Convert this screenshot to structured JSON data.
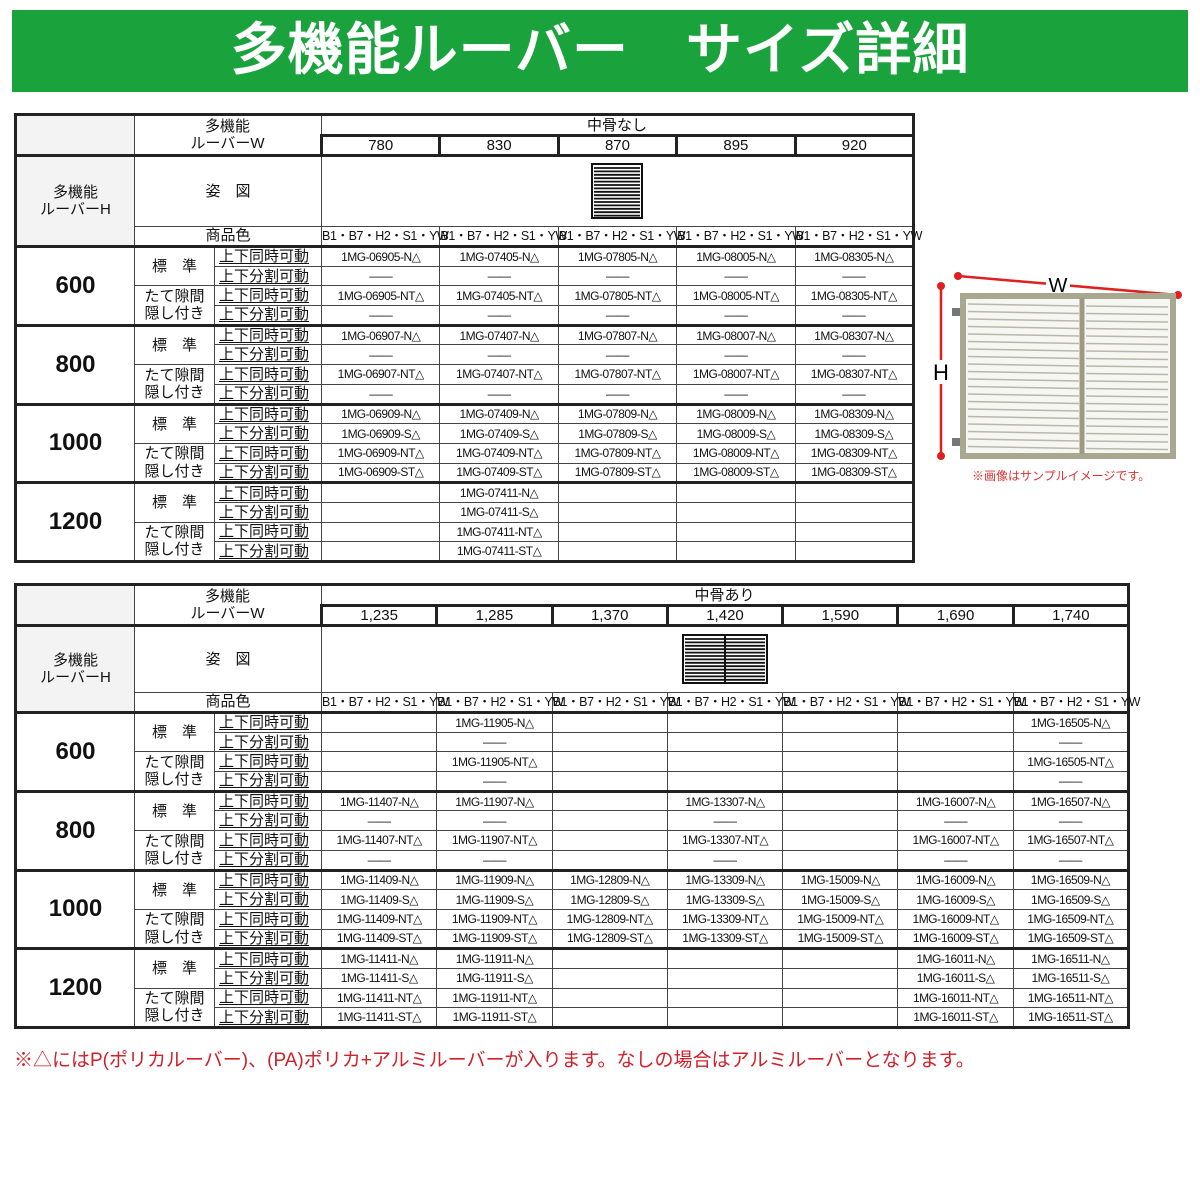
{
  "title": "多機能ルーバー　サイズ詳細",
  "labels": {
    "w_label_1": "多機能",
    "w_label_2": "ルーバーW",
    "h_label_1": "多機能",
    "h_label_2": "ルーバーH",
    "figure": "姿　図",
    "color": "商品色",
    "standard": "標　準",
    "hidden_1": "たて隙間",
    "hidden_2": "隠し付き",
    "sync": "上下同時可動",
    "split": "上下分割可動",
    "dash": "——"
  },
  "tables": [
    {
      "group": "中骨なし",
      "widths": [
        "780",
        "830",
        "870",
        "895",
        "920"
      ],
      "colors": [
        "B1・B7・H2・S1・YW",
        "B1・B7・H2・S1・YW",
        "B1・B7・H2・S1・YW",
        "B1・B7・H2・S1・YW",
        "B1・B7・H2・S1・YW"
      ],
      "rows": [
        {
          "height": "600",
          "cells": [
            [
              "1MG-06905-N△",
              "1MG-07405-N△",
              "1MG-07805-N△",
              "1MG-08005-N△",
              "1MG-08305-N△"
            ],
            [
              "——",
              "——",
              "——",
              "——",
              "——"
            ],
            [
              "1MG-06905-NT△",
              "1MG-07405-NT△",
              "1MG-07805-NT△",
              "1MG-08005-NT△",
              "1MG-08305-NT△"
            ],
            [
              "——",
              "——",
              "——",
              "——",
              "——"
            ]
          ]
        },
        {
          "height": "800",
          "cells": [
            [
              "1MG-06907-N△",
              "1MG-07407-N△",
              "1MG-07807-N△",
              "1MG-08007-N△",
              "1MG-08307-N△"
            ],
            [
              "——",
              "——",
              "——",
              "——",
              "——"
            ],
            [
              "1MG-06907-NT△",
              "1MG-07407-NT△",
              "1MG-07807-NT△",
              "1MG-08007-NT△",
              "1MG-08307-NT△"
            ],
            [
              "——",
              "——",
              "——",
              "——",
              "——"
            ]
          ]
        },
        {
          "height": "1000",
          "cells": [
            [
              "1MG-06909-N△",
              "1MG-07409-N△",
              "1MG-07809-N△",
              "1MG-08009-N△",
              "1MG-08309-N△"
            ],
            [
              "1MG-06909-S△",
              "1MG-07409-S△",
              "1MG-07809-S△",
              "1MG-08009-S△",
              "1MG-08309-S△"
            ],
            [
              "1MG-06909-NT△",
              "1MG-07409-NT△",
              "1MG-07809-NT△",
              "1MG-08009-NT△",
              "1MG-08309-NT△"
            ],
            [
              "1MG-06909-ST△",
              "1MG-07409-ST△",
              "1MG-07809-ST△",
              "1MG-08009-ST△",
              "1MG-08309-ST△"
            ]
          ]
        },
        {
          "height": "1200",
          "cells": [
            [
              "",
              "1MG-07411-N△",
              "",
              "",
              ""
            ],
            [
              "",
              "1MG-07411-S△",
              "",
              "",
              ""
            ],
            [
              "",
              "1MG-07411-NT△",
              "",
              "",
              ""
            ],
            [
              "",
              "1MG-07411-ST△",
              "",
              "",
              ""
            ]
          ]
        }
      ]
    },
    {
      "group": "中骨あり",
      "widths": [
        "1,235",
        "1,285",
        "1,370",
        "1,420",
        "1,590",
        "1,690",
        "1,740"
      ],
      "colors": [
        "B1・B7・H2・S1・YW",
        "B1・B7・H2・S1・YW",
        "B1・B7・H2・S1・YW",
        "B1・B7・H2・S1・YW",
        "B1・B7・H2・S1・YW",
        "B1・B7・H2・S1・YW",
        "B1・B7・H2・S1・YW"
      ],
      "rows": [
        {
          "height": "600",
          "cells": [
            [
              "",
              "1MG-11905-N△",
              "",
              "",
              "",
              "",
              "1MG-16505-N△"
            ],
            [
              "",
              "——",
              "",
              "",
              "",
              "",
              "——"
            ],
            [
              "",
              "1MG-11905-NT△",
              "",
              "",
              "",
              "",
              "1MG-16505-NT△"
            ],
            [
              "",
              "——",
              "",
              "",
              "",
              "",
              "——"
            ]
          ]
        },
        {
          "height": "800",
          "cells": [
            [
              "1MG-11407-N△",
              "1MG-11907-N△",
              "",
              "1MG-13307-N△",
              "",
              "1MG-16007-N△",
              "1MG-16507-N△"
            ],
            [
              "——",
              "——",
              "",
              "——",
              "",
              "——",
              "——"
            ],
            [
              "1MG-11407-NT△",
              "1MG-11907-NT△",
              "",
              "1MG-13307-NT△",
              "",
              "1MG-16007-NT△",
              "1MG-16507-NT△"
            ],
            [
              "——",
              "——",
              "",
              "——",
              "",
              "——",
              "——"
            ]
          ]
        },
        {
          "height": "1000",
          "cells": [
            [
              "1MG-11409-N△",
              "1MG-11909-N△",
              "1MG-12809-N△",
              "1MG-13309-N△",
              "1MG-15009-N△",
              "1MG-16009-N△",
              "1MG-16509-N△"
            ],
            [
              "1MG-11409-S△",
              "1MG-11909-S△",
              "1MG-12809-S△",
              "1MG-13309-S△",
              "1MG-15009-S△",
              "1MG-16009-S△",
              "1MG-16509-S△"
            ],
            [
              "1MG-11409-NT△",
              "1MG-11909-NT△",
              "1MG-12809-NT△",
              "1MG-13309-NT△",
              "1MG-15009-NT△",
              "1MG-16009-NT△",
              "1MG-16509-NT△"
            ],
            [
              "1MG-11409-ST△",
              "1MG-11909-ST△",
              "1MG-12809-ST△",
              "1MG-13309-ST△",
              "1MG-15009-ST△",
              "1MG-16009-ST△",
              "1MG-16509-ST△"
            ]
          ]
        },
        {
          "height": "1200",
          "cells": [
            [
              "1MG-11411-N△",
              "1MG-11911-N△",
              "",
              "",
              "",
              "1MG-16011-N△",
              "1MG-16511-N△"
            ],
            [
              "1MG-11411-S△",
              "1MG-11911-S△",
              "",
              "",
              "",
              "1MG-16011-S△",
              "1MG-16511-S△"
            ],
            [
              "1MG-11411-NT△",
              "1MG-11911-NT△",
              "",
              "",
              "",
              "1MG-16011-NT△",
              "1MG-16511-NT△"
            ],
            [
              "1MG-11411-ST△",
              "1MG-11911-ST△",
              "",
              "",
              "",
              "1MG-16011-ST△",
              "1MG-16511-ST△"
            ]
          ]
        }
      ]
    }
  ],
  "photo": {
    "w_mark": "W",
    "h_mark": "H",
    "caption": "※画像はサンプルイメージです。"
  },
  "note": "※△にはP(ポリカルーバー)、(PA)ポリカ+アルミルーバーが入ります。なしの場合はアルミルーバーとなります。",
  "colors": {
    "banner": "#1aa33c",
    "note": "#d0202a",
    "dimension_line": "#e02020"
  }
}
